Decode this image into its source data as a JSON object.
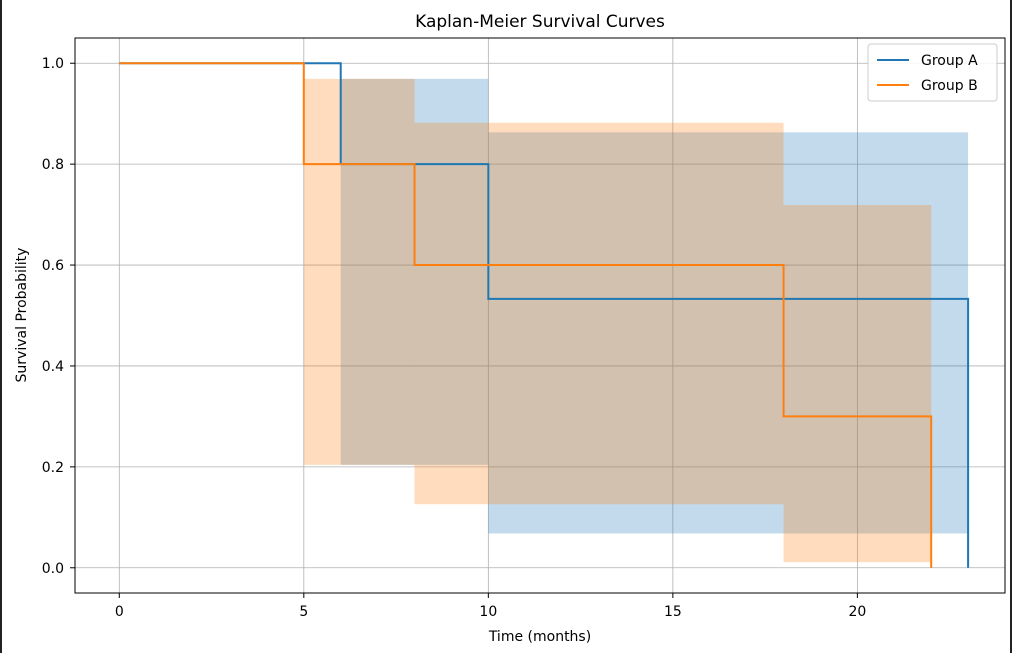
{
  "chart_data": {
    "type": "line",
    "style": "step-survival",
    "title": "Kaplan-Meier Survival Curves",
    "xlabel": "Time (months)",
    "ylabel": "Survival Probability",
    "xlim": [
      -1.2,
      24.0
    ],
    "ylim": [
      -0.05,
      1.05
    ],
    "xticks": [
      0,
      5,
      10,
      15,
      20
    ],
    "yticks": [
      0.0,
      0.2,
      0.4,
      0.6,
      0.8,
      1.0
    ],
    "xtick_labels": [
      "0",
      "5",
      "10",
      "15",
      "20"
    ],
    "ytick_labels": [
      "0.0",
      "0.2",
      "0.4",
      "0.6",
      "0.8",
      "1.0"
    ],
    "grid": true,
    "legend_position": "top-right",
    "series": [
      {
        "name": "Group A",
        "color": "#1f77b4",
        "band_color": "#1f77b4",
        "steps": [
          [
            0,
            1.0
          ],
          [
            6,
            0.8
          ],
          [
            10,
            0.533
          ],
          [
            23,
            0.0
          ]
        ],
        "end": 23,
        "ci": [
          {
            "from": 6,
            "to": 10,
            "lower": 0.204,
            "upper": 0.969
          },
          {
            "from": 10,
            "to": 18,
            "lower": 0.068,
            "upper": 0.863
          },
          {
            "from": 18,
            "to": 23,
            "lower": 0.068,
            "upper": 0.863
          }
        ]
      },
      {
        "name": "Group B",
        "color": "#ff7f0e",
        "band_color": "#ff7f0e",
        "steps": [
          [
            0,
            1.0
          ],
          [
            5,
            0.8
          ],
          [
            8,
            0.6
          ],
          [
            18,
            0.3
          ],
          [
            22,
            0.0
          ]
        ],
        "end": 22,
        "ci": [
          {
            "from": 5,
            "to": 8,
            "lower": 0.204,
            "upper": 0.969
          },
          {
            "from": 8,
            "to": 18,
            "lower": 0.126,
            "upper": 0.882
          },
          {
            "from": 18,
            "to": 22,
            "lower": 0.011,
            "upper": 0.719
          }
        ]
      }
    ]
  }
}
